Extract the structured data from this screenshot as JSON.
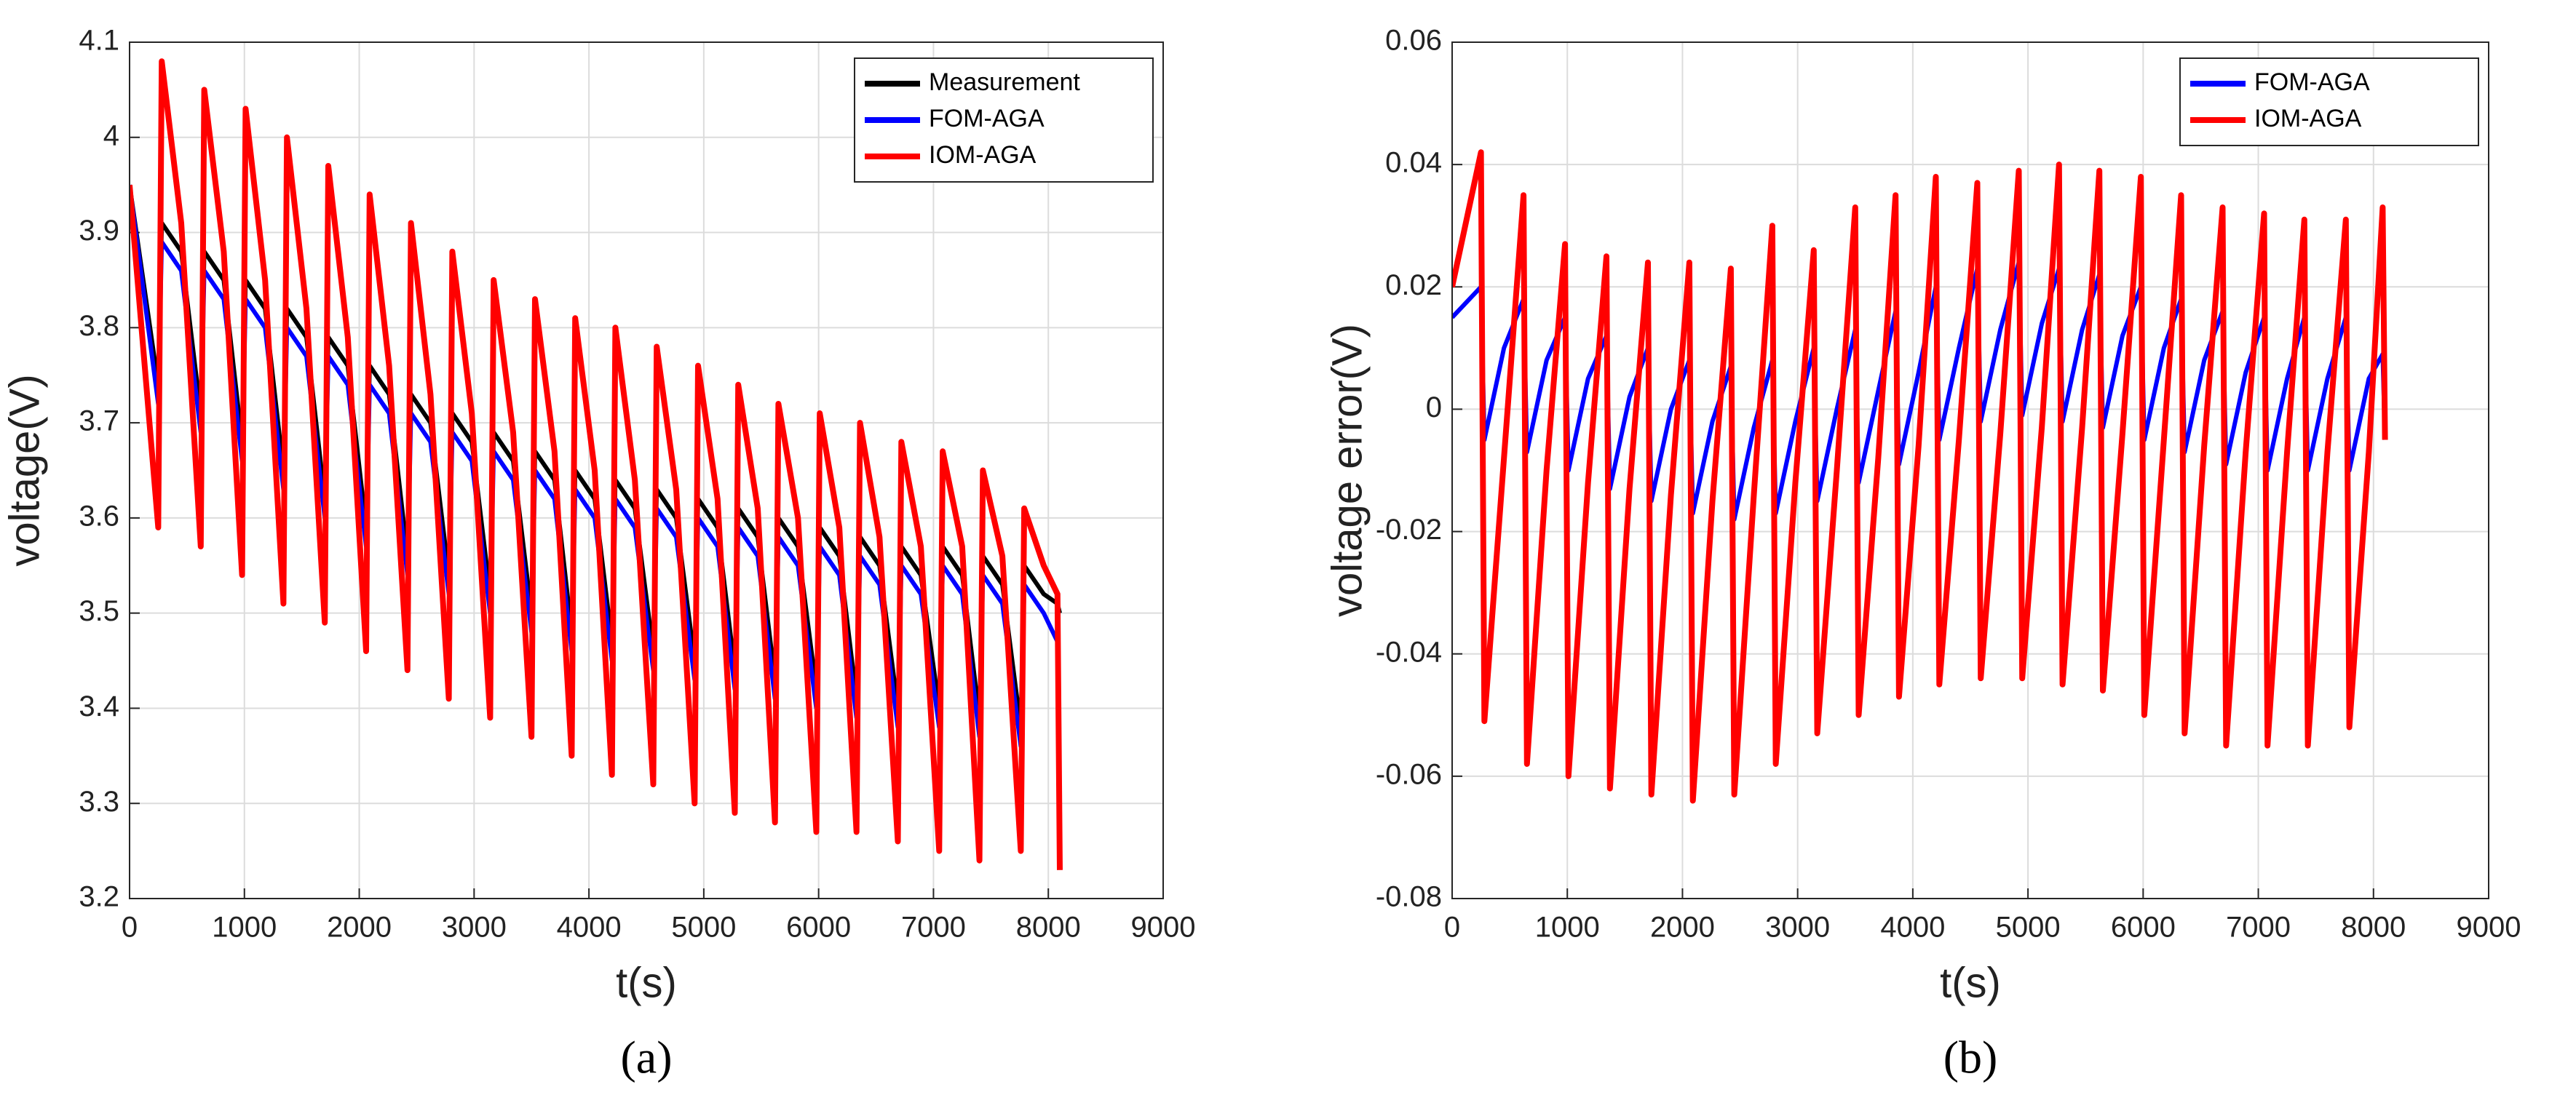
{
  "chart_data": [
    {
      "type": "line",
      "caption": "(a)",
      "xlabel": "t(s)",
      "ylabel": "voltage(V)",
      "xlim": [
        0,
        9000
      ],
      "xticks": [
        0,
        1000,
        2000,
        3000,
        4000,
        5000,
        6000,
        7000,
        8000,
        9000
      ],
      "ylim": [
        3.2,
        4.1
      ],
      "yticks": [
        3.2,
        3.3,
        3.4,
        3.5,
        3.6,
        3.7,
        3.8,
        3.9,
        4,
        4.1
      ],
      "grid": true,
      "legend": "upper right",
      "x": [
        0,
        250,
        280,
        450,
        620,
        650,
        820,
        980,
        1010,
        1180,
        1340,
        1370,
        1540,
        1700,
        1730,
        1900,
        2060,
        2090,
        2260,
        2420,
        2450,
        2620,
        2780,
        2810,
        2980,
        3140,
        3170,
        3340,
        3500,
        3530,
        3700,
        3850,
        3880,
        4050,
        4200,
        4230,
        4400,
        4560,
        4590,
        4760,
        4920,
        4950,
        5120,
        5270,
        5300,
        5470,
        5620,
        5650,
        5820,
        5980,
        6010,
        6180,
        6330,
        6360,
        6530,
        6690,
        6720,
        6890,
        7050,
        7080,
        7250,
        7400,
        7430,
        7600,
        7760,
        7790,
        7960,
        8080,
        8100
      ],
      "series": [
        {
          "name": "Measurement",
          "color": "#000000",
          "values": [
            3.95,
            3.74,
            3.91,
            3.88,
            3.71,
            3.88,
            3.85,
            3.68,
            3.85,
            3.82,
            3.65,
            3.82,
            3.79,
            3.62,
            3.79,
            3.76,
            3.59,
            3.76,
            3.73,
            3.56,
            3.73,
            3.7,
            3.54,
            3.71,
            3.68,
            3.52,
            3.69,
            3.66,
            3.5,
            3.67,
            3.64,
            3.48,
            3.65,
            3.62,
            3.47,
            3.64,
            3.61,
            3.46,
            3.63,
            3.6,
            3.45,
            3.62,
            3.59,
            3.44,
            3.61,
            3.58,
            3.43,
            3.6,
            3.57,
            3.42,
            3.59,
            3.56,
            3.41,
            3.58,
            3.55,
            3.4,
            3.57,
            3.54,
            3.4,
            3.57,
            3.54,
            3.39,
            3.56,
            3.53,
            3.38,
            3.55,
            3.52,
            3.51,
            3.5
          ]
        },
        {
          "name": "FOM-AGA",
          "color": "#0000ff",
          "values": [
            3.95,
            3.72,
            3.89,
            3.86,
            3.69,
            3.86,
            3.83,
            3.66,
            3.83,
            3.8,
            3.63,
            3.8,
            3.77,
            3.6,
            3.77,
            3.74,
            3.57,
            3.74,
            3.71,
            3.54,
            3.71,
            3.68,
            3.52,
            3.69,
            3.66,
            3.5,
            3.67,
            3.64,
            3.48,
            3.65,
            3.62,
            3.46,
            3.63,
            3.6,
            3.45,
            3.62,
            3.59,
            3.44,
            3.61,
            3.58,
            3.43,
            3.6,
            3.57,
            3.42,
            3.59,
            3.56,
            3.41,
            3.58,
            3.55,
            3.4,
            3.57,
            3.54,
            3.39,
            3.56,
            3.53,
            3.38,
            3.55,
            3.52,
            3.38,
            3.55,
            3.52,
            3.37,
            3.54,
            3.51,
            3.36,
            3.53,
            3.5,
            3.47,
            3.47
          ]
        },
        {
          "name": "IOM-AGA",
          "color": "#ff0000",
          "values": [
            3.95,
            3.59,
            4.08,
            3.91,
            3.57,
            4.05,
            3.88,
            3.54,
            4.03,
            3.85,
            3.51,
            4.0,
            3.82,
            3.49,
            3.97,
            3.79,
            3.46,
            3.94,
            3.76,
            3.44,
            3.91,
            3.73,
            3.41,
            3.88,
            3.71,
            3.39,
            3.85,
            3.69,
            3.37,
            3.83,
            3.67,
            3.35,
            3.81,
            3.65,
            3.33,
            3.8,
            3.64,
            3.32,
            3.78,
            3.63,
            3.3,
            3.76,
            3.62,
            3.29,
            3.74,
            3.61,
            3.28,
            3.72,
            3.6,
            3.27,
            3.71,
            3.59,
            3.27,
            3.7,
            3.58,
            3.26,
            3.68,
            3.57,
            3.25,
            3.67,
            3.57,
            3.24,
            3.65,
            3.56,
            3.25,
            3.61,
            3.55,
            3.52,
            3.23
          ]
        }
      ]
    },
    {
      "type": "line",
      "caption": "(b)",
      "xlabel": "t(s)",
      "ylabel": "voltage error(V)",
      "xlim": [
        0,
        9000
      ],
      "xticks": [
        0,
        1000,
        2000,
        3000,
        4000,
        5000,
        6000,
        7000,
        8000,
        9000
      ],
      "ylim": [
        -0.08,
        0.06
      ],
      "yticks": [
        -0.08,
        -0.06,
        -0.04,
        -0.02,
        0,
        0.02,
        0.04,
        0.06
      ],
      "grid": true,
      "legend": "upper right",
      "x": [
        0,
        250,
        280,
        450,
        620,
        650,
        820,
        980,
        1010,
        1180,
        1340,
        1370,
        1540,
        1700,
        1730,
        1900,
        2060,
        2090,
        2260,
        2420,
        2450,
        2620,
        2780,
        2810,
        2980,
        3140,
        3170,
        3340,
        3500,
        3530,
        3700,
        3850,
        3880,
        4050,
        4200,
        4230,
        4400,
        4560,
        4590,
        4760,
        4920,
        4950,
        5120,
        5270,
        5300,
        5470,
        5620,
        5650,
        5820,
        5980,
        6010,
        6180,
        6330,
        6360,
        6530,
        6690,
        6720,
        6890,
        7050,
        7080,
        7250,
        7400,
        7430,
        7600,
        7760,
        7790,
        7960,
        8080,
        8100
      ],
      "series": [
        {
          "name": "FOM-AGA",
          "color": "#0000ff",
          "values": [
            0.015,
            0.02,
            -0.005,
            0.01,
            0.018,
            -0.007,
            0.008,
            0.015,
            -0.01,
            0.005,
            0.012,
            -0.013,
            0.002,
            0.01,
            -0.015,
            0,
            0.008,
            -0.017,
            -0.002,
            0.007,
            -0.018,
            -0.003,
            0.008,
            -0.017,
            -0.002,
            0.01,
            -0.015,
            0,
            0.013,
            -0.012,
            0.003,
            0.016,
            -0.009,
            0.006,
            0.02,
            -0.005,
            0.01,
            0.023,
            -0.002,
            0.013,
            0.024,
            -0.001,
            0.014,
            0.023,
            -0.002,
            0.013,
            0.022,
            -0.003,
            0.012,
            0.02,
            -0.005,
            0.01,
            0.018,
            -0.007,
            0.008,
            0.016,
            -0.009,
            0.006,
            0.015,
            -0.01,
            0.005,
            0.015,
            -0.01,
            0.005,
            0.015,
            -0.01,
            0.005,
            0.009,
            -0.005
          ]
        },
        {
          "name": "IOM-AGA",
          "color": "#ff0000",
          "values": [
            0.02,
            0.042,
            -0.051,
            -0.008,
            0.035,
            -0.058,
            -0.01,
            0.027,
            -0.06,
            -0.012,
            0.025,
            -0.062,
            -0.013,
            0.024,
            -0.063,
            -0.014,
            0.024,
            -0.064,
            -0.015,
            0.023,
            -0.063,
            -0.014,
            0.03,
            -0.058,
            -0.012,
            0.026,
            -0.053,
            -0.01,
            0.033,
            -0.05,
            -0.008,
            0.035,
            -0.047,
            -0.006,
            0.038,
            -0.045,
            -0.005,
            0.037,
            -0.044,
            -0.004,
            0.039,
            -0.044,
            -0.003,
            0.04,
            -0.045,
            -0.003,
            0.039,
            -0.046,
            -0.004,
            0.038,
            -0.05,
            -0.005,
            0.035,
            -0.053,
            -0.006,
            0.033,
            -0.055,
            -0.007,
            0.032,
            -0.055,
            -0.007,
            0.031,
            -0.055,
            -0.007,
            0.031,
            -0.052,
            -0.007,
            0.033,
            -0.005
          ]
        }
      ]
    }
  ]
}
